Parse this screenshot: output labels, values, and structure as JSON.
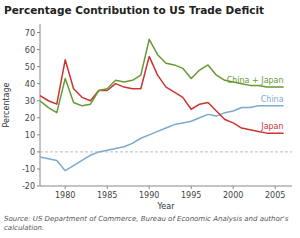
{
  "chart_data": {
    "type": "line",
    "title": "Percentage Contribution to US Trade Deficit",
    "x_label": "Year",
    "y_label": "Percentage",
    "source": "Source: US Department of Commerce, Bureau of Economic Analysis and author's calculation.",
    "x": [
      1977,
      1978,
      1979,
      1980,
      1981,
      1982,
      1983,
      1984,
      1985,
      1986,
      1987,
      1988,
      1989,
      1990,
      1991,
      1992,
      1993,
      1994,
      1995,
      1996,
      1997,
      1998,
      1999,
      2000,
      2001,
      2002,
      2003,
      2004,
      2005,
      2006
    ],
    "series": [
      {
        "name": "China",
        "color": "#7aaacc",
        "values": [
          -3,
          -4,
          -5,
          -11,
          -8,
          -5,
          -2,
          0,
          1,
          2,
          3,
          5,
          8,
          10,
          12,
          14,
          16,
          17,
          18,
          20,
          22,
          21,
          23,
          24,
          26,
          26,
          27,
          27,
          27,
          27
        ]
      },
      {
        "name": "Japan",
        "color": "#cc3333",
        "values": [
          33,
          30,
          28,
          54,
          37,
          32,
          30,
          36,
          36,
          40,
          38,
          37,
          37,
          56,
          45,
          38,
          35,
          32,
          25,
          28,
          29,
          24,
          19,
          17,
          14,
          13,
          12,
          11,
          11,
          11
        ]
      },
      {
        "name": "China + Japan",
        "color": "#669933",
        "values": [
          30,
          26,
          23,
          43,
          29,
          27,
          28,
          36,
          37,
          42,
          41,
          42,
          45,
          66,
          57,
          52,
          51,
          49,
          43,
          48,
          51,
          45,
          42,
          41,
          40,
          39,
          39,
          38,
          38,
          38
        ]
      }
    ],
    "xlim": [
      1977,
      2007
    ],
    "ylim": [
      -20,
      75
    ],
    "xticks": [
      1980,
      1985,
      1990,
      1995,
      2000,
      2005
    ],
    "yticks": [
      -20,
      -10,
      0,
      10,
      20,
      30,
      40,
      50,
      60,
      70
    ],
    "grid": false
  }
}
